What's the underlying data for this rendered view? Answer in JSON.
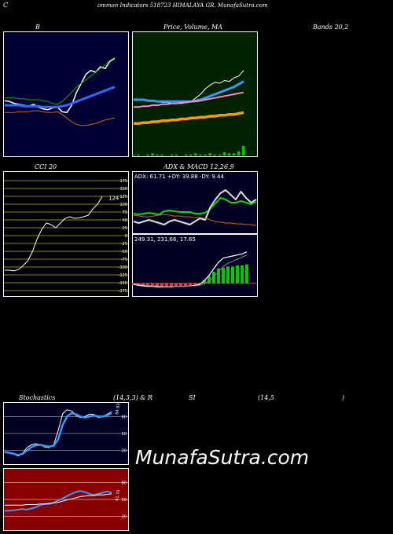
{
  "header": {
    "title": "ommon Indicators 518723 HIMALAYA GR. MunafaSutra.com",
    "c_letter": "C"
  },
  "captions": {
    "bb_b": "B",
    "price_volume": "Price, Volume, MA",
    "bands": "Bands 20,2",
    "cci": "CCI 20",
    "adx_macd": "ADX  & MACD 12,26,9",
    "stoch_a": "Stochastics",
    "stoch_b": "(14,3,3) & R",
    "rsi_a": "SI",
    "rsi_b": "(14,5",
    "rsi_c": ")"
  },
  "watermark": "MunafaSutra.com",
  "colors": {
    "bb_bg": "#000033",
    "price_bg": "#002200",
    "cci_bg": "#000000",
    "cci_grid": "#888800",
    "adx_bg": "#000022",
    "macd_bg": "#000022",
    "stoch_bg": "#000022",
    "rsi_bg": "#880000",
    "white": "#ffffff",
    "blue": "#3399ff",
    "green": "#00cc00",
    "orange": "#cc6600",
    "pink": "#ff88cc",
    "red": "#ff3333"
  },
  "chart_data": [
    {
      "id": "bollinger",
      "type": "line",
      "series": [
        {
          "role": "price",
          "color": "#ffffff",
          "values": [
            53,
            52,
            50,
            49,
            48,
            47,
            49,
            46,
            44,
            43,
            45,
            46,
            41,
            40,
            48,
            62,
            72,
            82,
            86,
            84,
            90,
            88,
            96,
            99
          ]
        },
        {
          "role": "upper-band",
          "color": "#00aa00",
          "values": [
            56,
            56,
            56,
            55,
            55,
            54,
            54,
            54,
            53,
            52,
            50,
            49,
            52,
            57,
            62,
            68,
            72,
            76,
            80,
            84,
            88,
            92,
            97,
            100
          ]
        },
        {
          "role": "middle-band",
          "color": "#3366ff",
          "values": [
            48,
            48,
            48,
            48,
            47,
            47,
            47,
            47,
            46,
            46,
            46,
            46,
            47,
            48,
            50,
            52,
            54,
            56,
            58,
            60,
            62,
            64,
            66,
            68
          ]
        },
        {
          "role": "lower-band",
          "color": "#cc6600",
          "values": [
            40,
            40,
            40,
            41,
            41,
            41,
            42,
            42,
            41,
            40,
            40,
            41,
            38,
            34,
            30,
            27,
            26,
            26,
            27,
            28,
            30,
            32,
            33,
            34
          ]
        }
      ],
      "ylim": [
        0,
        120
      ]
    },
    {
      "id": "price-volume-ma",
      "type": "line",
      "series": [
        {
          "role": "price",
          "color": "#ffffff",
          "values": [
            55,
            54,
            54,
            53,
            52,
            52,
            51,
            51,
            50,
            50,
            50,
            51,
            52,
            56,
            60,
            66,
            70,
            73,
            72,
            75,
            74,
            78,
            80,
            86
          ]
        },
        {
          "role": "ma-short",
          "color": "#3399ff",
          "values": [
            54,
            54,
            54,
            53,
            53,
            52,
            52,
            52,
            52,
            52,
            52,
            52,
            52,
            53,
            54,
            56,
            58,
            60,
            62,
            64,
            66,
            68,
            71,
            74
          ]
        },
        {
          "role": "ma-mid",
          "color": "#ff88cc",
          "values": [
            46,
            46,
            47,
            47,
            48,
            48,
            49,
            49,
            50,
            50,
            51,
            51,
            52,
            52,
            53,
            54,
            55,
            56,
            57,
            58,
            59,
            60,
            61,
            62
          ]
        },
        {
          "role": "ma-long",
          "color": "#ff9900",
          "values": [
            28,
            28,
            29,
            29,
            30,
            30,
            31,
            31,
            32,
            32,
            33,
            33,
            34,
            34,
            35,
            35,
            36,
            36,
            37,
            37,
            38,
            38,
            39,
            40
          ]
        }
      ],
      "volume": [
        1,
        1,
        0,
        1,
        2,
        1,
        1,
        0,
        1,
        1,
        0,
        1,
        1,
        2,
        1,
        1,
        2,
        1,
        1,
        3,
        2,
        2,
        4,
        9
      ],
      "ylim": [
        0,
        120
      ]
    },
    {
      "id": "cci",
      "type": "line",
      "ticks": [
        "175",
        "150",
        "125",
        "100",
        "75",
        "50",
        "25",
        "0",
        "-25",
        "-50",
        "-75",
        "-100",
        "-125",
        "-150",
        "-175"
      ],
      "last_label": "124",
      "values": [
        -110,
        -110,
        -112,
        -108,
        -95,
        -80,
        -50,
        -10,
        20,
        40,
        35,
        25,
        40,
        55,
        60,
        55,
        56,
        60,
        65,
        85,
        100,
        124
      ],
      "ylim": [
        -180,
        180
      ]
    },
    {
      "id": "adx",
      "type": "line",
      "label": "ADX: 61.71  +DY: 39.88  -DY: 9.44",
      "series": [
        {
          "role": "adx",
          "color": "#00dd00",
          "values": [
            22,
            21,
            22,
            23,
            22,
            21,
            25,
            26,
            25,
            24,
            24,
            24,
            22,
            22,
            23,
            28,
            35,
            42,
            40,
            36,
            36,
            38,
            36,
            34,
            37
          ]
        },
        {
          "role": "plus-di",
          "color": "#ffffff",
          "values": [
            12,
            10,
            12,
            14,
            12,
            10,
            8,
            12,
            14,
            12,
            10,
            8,
            12,
            16,
            14,
            30,
            40,
            48,
            52,
            46,
            40,
            50,
            42,
            36,
            40
          ]
        },
        {
          "role": "minus-di",
          "color": "#cc6600",
          "values": [
            20,
            19,
            18,
            18,
            19,
            20,
            21,
            20,
            19,
            19,
            18,
            18,
            17,
            17,
            16,
            14,
            12,
            11,
            10,
            10,
            9,
            9,
            8,
            8,
            7
          ]
        }
      ],
      "ylim": [
        0,
        60
      ]
    },
    {
      "id": "macd",
      "type": "bar",
      "label": "249.31,  231.66,  17.65",
      "series": [
        {
          "role": "macd",
          "color": "#ffffff",
          "values": [
            -2,
            -4,
            -5,
            -6,
            -6,
            -7,
            -7,
            -7,
            -7,
            -6,
            -6,
            -6,
            -5,
            -4,
            -2,
            5,
            15,
            28,
            40,
            48,
            50,
            52,
            54,
            56,
            60
          ]
        },
        {
          "role": "signal",
          "color": "#888888",
          "values": [
            -1,
            -2,
            -3,
            -4,
            -5,
            -5,
            -6,
            -6,
            -6,
            -6,
            -6,
            -6,
            -5,
            -5,
            -4,
            -1,
            4,
            12,
            22,
            32,
            38,
            42,
            46,
            50,
            54
          ]
        }
      ],
      "histogram": [
        -3,
        -5,
        -5,
        -6,
        -6,
        -7,
        -6,
        -6,
        -6,
        -5,
        -5,
        -5,
        -4,
        -3,
        -1,
        6,
        14,
        22,
        28,
        30,
        32,
        32,
        34,
        34,
        36
      ],
      "ylim": [
        -20,
        70
      ]
    },
    {
      "id": "stochastics",
      "type": "line",
      "ticks": [
        "80",
        "50",
        "20"
      ],
      "last_label": "84.93",
      "series": [
        {
          "role": "k",
          "color": "#ffffff",
          "values": [
            18,
            16,
            14,
            10,
            15,
            25,
            30,
            32,
            30,
            26,
            25,
            30,
            55,
            85,
            92,
            90,
            82,
            78,
            80,
            84,
            84,
            78,
            80,
            84,
            88
          ]
        },
        {
          "role": "d",
          "color": "#3399ff",
          "values": [
            17,
            16,
            14,
            12,
            14,
            20,
            26,
            29,
            30,
            28,
            27,
            28,
            40,
            65,
            80,
            86,
            84,
            80,
            78,
            80,
            82,
            80,
            80,
            82,
            86
          ]
        }
      ],
      "ylim": [
        0,
        100
      ]
    },
    {
      "id": "rsi",
      "type": "line",
      "ticks": [
        "80",
        "50",
        "20"
      ],
      "last_label": "61.70",
      "series": [
        {
          "role": "rsi",
          "color": "#3399ff",
          "values": [
            30,
            30,
            31,
            32,
            33,
            32,
            34,
            36,
            40,
            42,
            42,
            44,
            48,
            52,
            56,
            60,
            63,
            65,
            63,
            60,
            58,
            60,
            62,
            64,
            62
          ]
        },
        {
          "role": "baseline",
          "color": "#ffffff",
          "values": [
            40,
            40,
            40,
            40,
            40,
            41,
            41,
            41,
            42,
            42,
            43,
            44,
            45,
            47,
            49,
            51,
            53,
            55,
            56,
            57,
            57,
            58,
            58,
            59,
            60
          ]
        }
      ],
      "ylim": [
        0,
        100
      ]
    }
  ]
}
